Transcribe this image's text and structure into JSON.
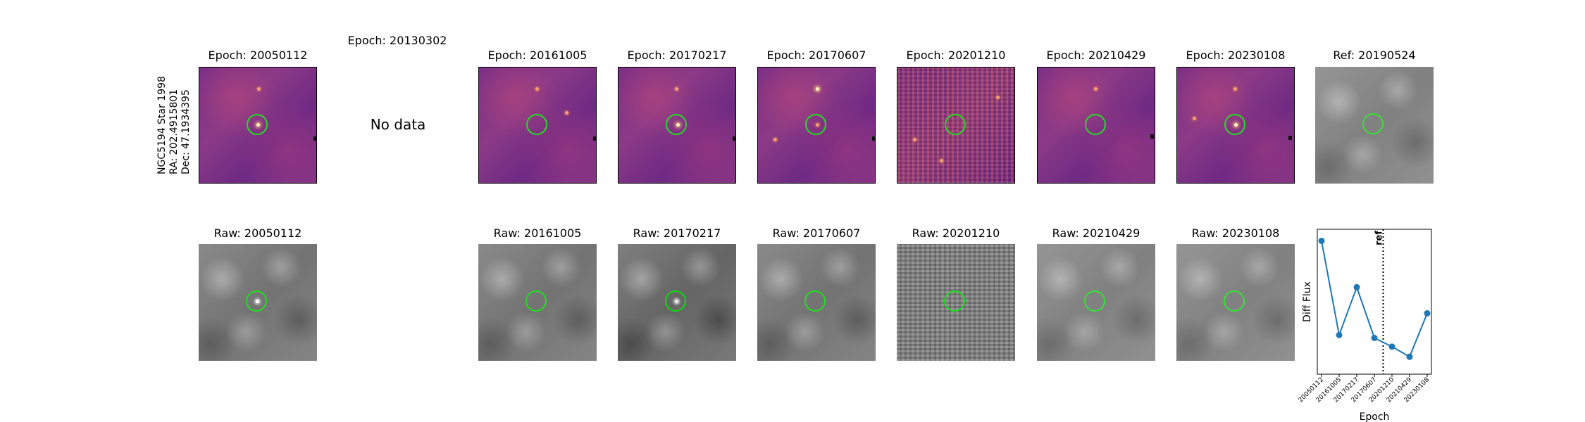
{
  "header": {
    "extra_title": "Epoch: 20130302",
    "no_data": "No data",
    "star_label": "NGC5194 Star 1998",
    "ra_label": "RA: 202.4915801",
    "dec_label": "Dec: 47.1934395"
  },
  "diff_titles": [
    "Epoch: 20050112",
    "Epoch: 20161005",
    "Epoch: 20170217",
    "Epoch: 20170607",
    "Epoch: 20201210",
    "Epoch: 20210429",
    "Epoch: 20230108"
  ],
  "ref_title": "Ref: 20190524",
  "raw_titles": [
    "Raw: 20050112",
    "Raw: 20161005",
    "Raw: 20170217",
    "Raw: 20170607",
    "Raw: 20201210",
    "Raw: 20210429",
    "Raw: 20230108"
  ],
  "colors": {
    "ring": "#22dd22",
    "line": "#1f77b4"
  },
  "chart_data": {
    "type": "line",
    "ylabel": "Diff Flux",
    "xlabel": "Epoch",
    "categories": [
      "20050112",
      "20161005",
      "20170217",
      "20170607",
      "20201210",
      "20210429",
      "20230108"
    ],
    "values": [
      0.92,
      0.27,
      0.6,
      0.25,
      0.19,
      0.12,
      0.42
    ],
    "ylim": [
      0,
      1
    ],
    "reference": {
      "label": "ref",
      "between": [
        "20170607",
        "20201210"
      ],
      "style": "dotted"
    },
    "grid": false
  }
}
